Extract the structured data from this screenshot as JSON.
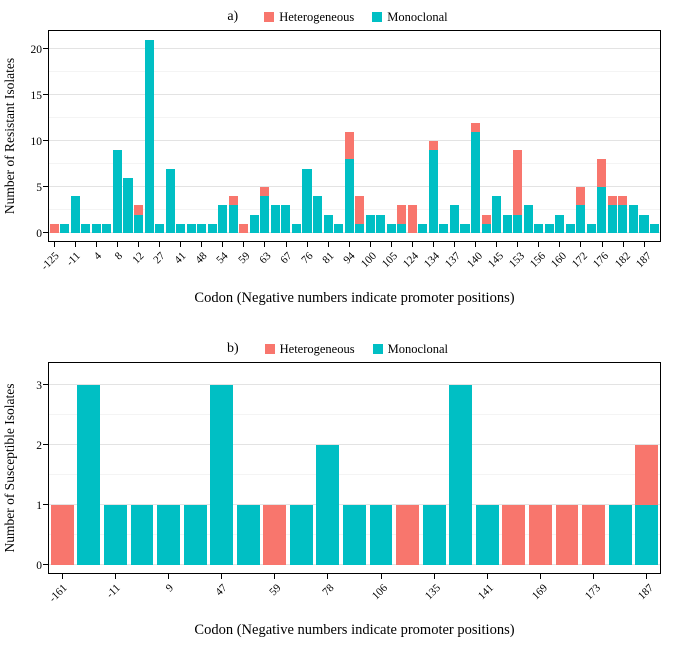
{
  "figure": {
    "panels": [
      {
        "tag": "a)",
        "ylabel": "Number of Resistant Isolates",
        "xlabel": "Codon (Negative numbers indicate promoter positions)"
      },
      {
        "tag": "b)",
        "ylabel": "Number of Susceptible Isolates",
        "xlabel": "Codon (Negative numbers indicate promoter positions)"
      }
    ]
  },
  "chart_data": [
    {
      "type": "bar",
      "stacked": true,
      "panel": "a",
      "xlabel": "Codon (Negative numbers indicate promoter positions)",
      "ylabel": "Number of Resistant Isolates",
      "ylim": [
        0,
        22
      ],
      "yticks": [
        0,
        5,
        10,
        15,
        20
      ],
      "grid": "horizontal",
      "legend_position": "top",
      "legend_order": [
        "Heterogeneous",
        "Monoclonal"
      ],
      "categories": [
        "-125",
        "",
        "-11",
        "",
        "4",
        "",
        "8",
        "",
        "12",
        "",
        "27",
        "",
        "41",
        "",
        "48",
        "",
        "54",
        "",
        "59",
        "",
        "63",
        "",
        "67",
        "",
        "76",
        "",
        "81",
        "",
        "94",
        "",
        "100",
        "",
        "105",
        "",
        "124",
        "",
        "134",
        "",
        "137",
        "",
        "140",
        "",
        "145",
        "",
        "153",
        "",
        "156",
        "",
        "160",
        "",
        "172",
        "",
        "176",
        "",
        "182",
        "",
        "187",
        ""
      ],
      "series": [
        {
          "name": "Monoclonal",
          "color": "#00BFC4",
          "values": [
            0,
            1,
            4,
            1,
            1,
            1,
            9,
            6,
            2,
            21,
            1,
            7,
            1,
            1,
            1,
            1,
            3,
            3,
            0,
            2,
            4,
            3,
            3,
            1,
            7,
            4,
            2,
            1,
            8,
            1,
            2,
            2,
            1,
            1,
            0,
            1,
            9,
            1,
            3,
            1,
            11,
            1,
            4,
            2,
            2,
            3,
            1,
            1,
            2,
            1,
            3,
            1,
            5,
            3,
            3,
            3,
            2,
            1
          ]
        },
        {
          "name": "Heterogeneous",
          "color": "#F8766D",
          "values": [
            1,
            0,
            0,
            0,
            0,
            0,
            0,
            0,
            1,
            0,
            0,
            0,
            0,
            0,
            0,
            0,
            0,
            1,
            1,
            0,
            1,
            0,
            0,
            0,
            0,
            0,
            0,
            0,
            3,
            3,
            0,
            0,
            0,
            2,
            3,
            0,
            1,
            0,
            0,
            0,
            1,
            1,
            0,
            0,
            7,
            0,
            0,
            0,
            0,
            0,
            2,
            0,
            3,
            1,
            1,
            0,
            0,
            0
          ]
        }
      ]
    },
    {
      "type": "bar",
      "stacked": true,
      "panel": "b",
      "xlabel": "Codon (Negative numbers indicate promoter positions)",
      "ylabel": "Number of Susceptible Isolates",
      "ylim": [
        0,
        3.2
      ],
      "yticks": [
        0,
        1,
        2,
        3
      ],
      "grid": "horizontal",
      "legend_position": "top",
      "legend_order": [
        "Heterogeneous",
        "Monoclonal"
      ],
      "categories": [
        "-161",
        "",
        "-11",
        "",
        "9",
        "",
        "47",
        "",
        "59",
        "",
        "78",
        "",
        "106",
        "",
        "135",
        "",
        "141",
        "",
        "169",
        "",
        "173",
        "",
        "187"
      ],
      "series": [
        {
          "name": "Monoclonal",
          "color": "#00BFC4",
          "values": [
            0,
            3,
            1,
            1,
            1,
            1,
            3,
            1,
            0,
            1,
            2,
            1,
            1,
            0,
            1,
            3,
            1,
            0,
            0,
            0,
            0,
            1,
            1
          ]
        },
        {
          "name": "Heterogeneous",
          "color": "#F8766D",
          "values": [
            1,
            0,
            0,
            0,
            0,
            0,
            0,
            0,
            1,
            0,
            0,
            0,
            0,
            1,
            0,
            0,
            0,
            1,
            1,
            1,
            1,
            0,
            1
          ]
        }
      ]
    }
  ]
}
